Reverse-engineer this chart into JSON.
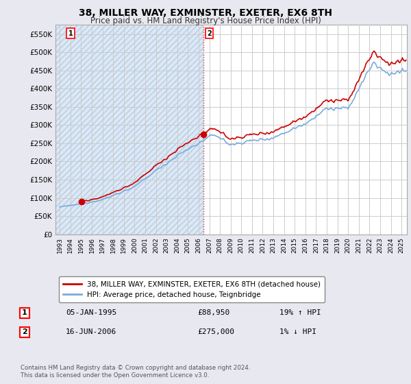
{
  "title": "38, MILLER WAY, EXMINSTER, EXETER, EX6 8TH",
  "subtitle": "Price paid vs. HM Land Registry's House Price Index (HPI)",
  "legend_line1": "38, MILLER WAY, EXMINSTER, EXETER, EX6 8TH (detached house)",
  "legend_line2": "HPI: Average price, detached house, Teignbridge",
  "transaction1_date": "05-JAN-1995",
  "transaction1_price": "£88,950",
  "transaction1_hpi": "19% ↑ HPI",
  "transaction2_date": "16-JUN-2006",
  "transaction2_price": "£275,000",
  "transaction2_hpi": "1% ↓ HPI",
  "footer": "Contains HM Land Registry data © Crown copyright and database right 2024.\nThis data is licensed under the Open Government Licence v3.0.",
  "ylim": [
    0,
    575000
  ],
  "yticks": [
    0,
    50000,
    100000,
    150000,
    200000,
    250000,
    300000,
    350000,
    400000,
    450000,
    500000,
    550000
  ],
  "hpi_color": "#7aabdb",
  "price_color": "#cc0000",
  "bg_color": "#e8e8f0",
  "plot_bg": "#ffffff",
  "hatch_bg": "#dce8f5",
  "grid_color": "#cccccc",
  "transaction1_x": 1995.04,
  "transaction1_y": 88950,
  "transaction2_x": 2006.46,
  "transaction2_y": 275000,
  "xlim_left": 1992.6,
  "xlim_right": 2025.5
}
